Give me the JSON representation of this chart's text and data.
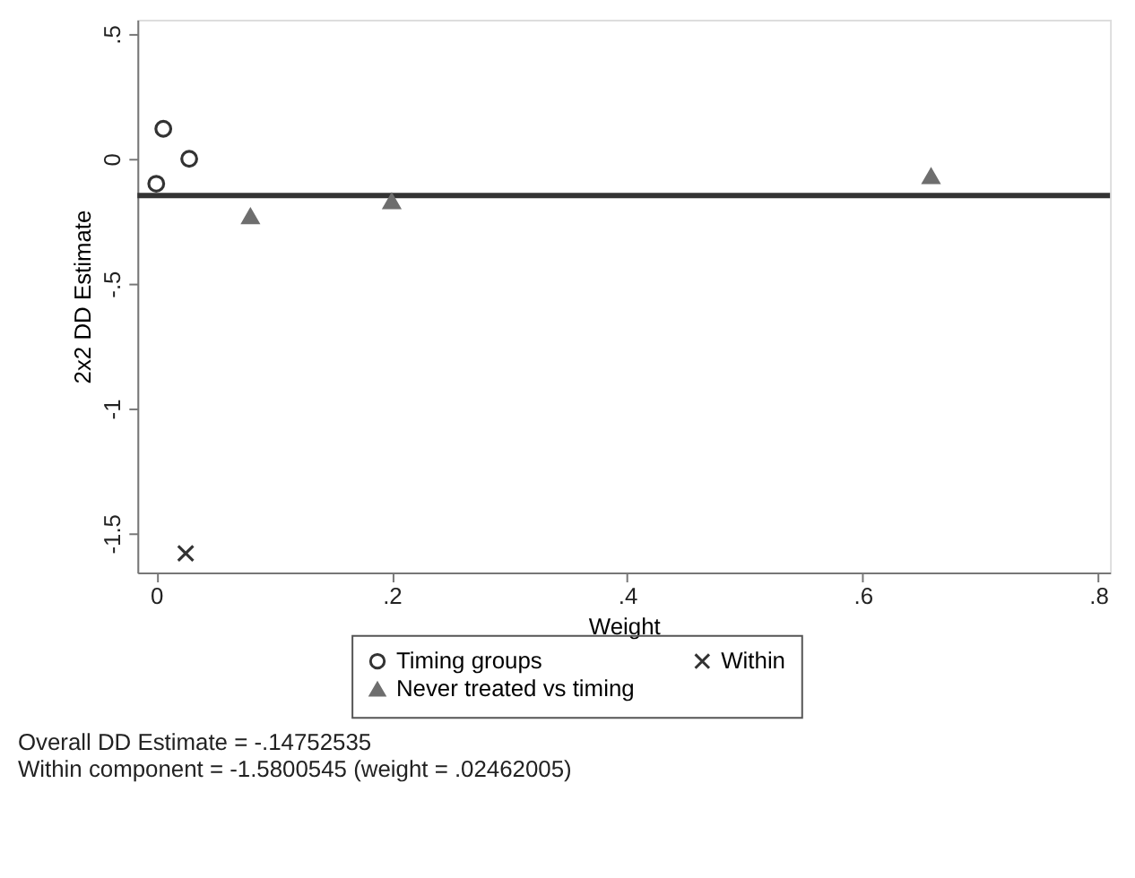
{
  "chart_data": {
    "type": "scatter",
    "xlabel": "Weight",
    "ylabel": "2x2 DD Estimate",
    "xlim": [
      -0.016,
      0.81
    ],
    "xticks": [
      {
        "value": 0,
        "label": "0"
      },
      {
        "value": 0.2,
        "label": ".2"
      },
      {
        "value": 0.4,
        "label": ".4"
      },
      {
        "value": 0.6,
        "label": ".6"
      },
      {
        "value": 0.8,
        "label": ".8"
      }
    ],
    "ylim": [
      -1.657,
      0.557
    ],
    "yticks": [
      {
        "value": 0.5,
        "label": ".5"
      },
      {
        "value": 0,
        "label": "0"
      },
      {
        "value": -0.5,
        "label": "-.5"
      },
      {
        "value": -1,
        "label": "-1"
      },
      {
        "value": -1.5,
        "label": "-1.5"
      }
    ],
    "series": [
      {
        "name": "Timing groups",
        "color": "#333333",
        "marker": "circle",
        "x": [
          0.0,
          0.006,
          0.028
        ],
        "values": [
          -0.1,
          0.12,
          0.0
        ]
      },
      {
        "name": "Never treated vs timing",
        "color": "#6e6e6e",
        "marker": "triangle",
        "x": [
          0.08,
          0.2,
          0.658
        ],
        "values": [
          -0.23,
          -0.17,
          -0.07
        ]
      },
      {
        "name": "Within",
        "color": "#333333",
        "marker": "cross",
        "x": [
          0.025
        ],
        "values": [
          -1.58
        ]
      }
    ],
    "ref_lines": [
      {
        "axis": "y",
        "value": -0.14752535,
        "color": "#333333"
      }
    ],
    "grid": false,
    "legend": "bottom",
    "annotations": [
      "Overall DD Estimate = -.14752535",
      "Within component = -1.5800545 (weight = .02462005)"
    ]
  }
}
